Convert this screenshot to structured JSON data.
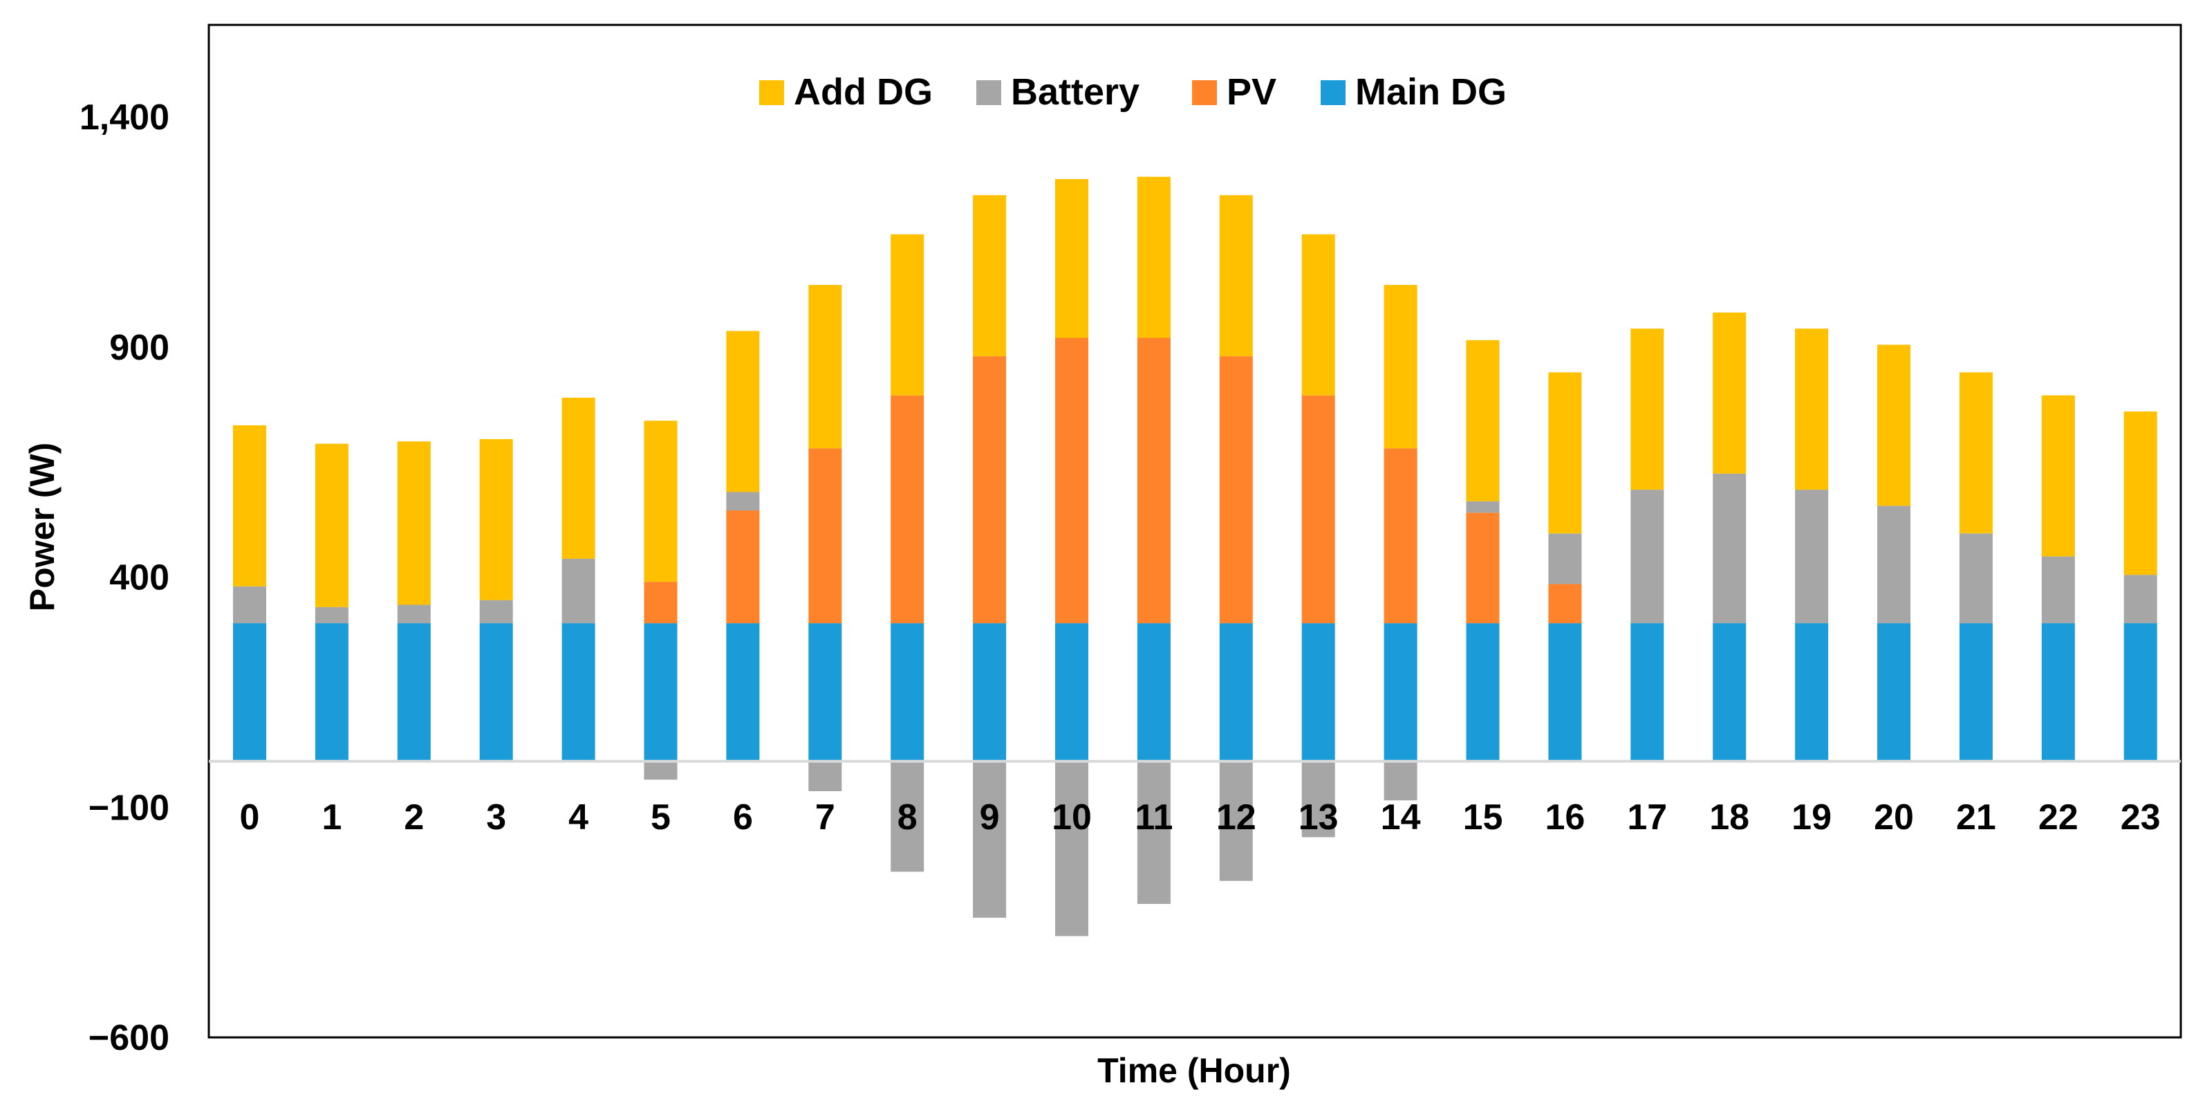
{
  "chart_data": {
    "type": "bar",
    "stacked": true,
    "title": "",
    "xlabel": "Time (Hour)",
    "ylabel": "Power (W)",
    "ylim": [
      -600,
      1600
    ],
    "yticks": [
      -600,
      -100,
      400,
      900,
      1400
    ],
    "ytick_labels": [
      "−600",
      "−100",
      "400",
      "900",
      "1,400"
    ],
    "categories": [
      "0",
      "1",
      "2",
      "3",
      "4",
      "5",
      "6",
      "7",
      "8",
      "9",
      "10",
      "11",
      "12",
      "13",
      "14",
      "15",
      "16",
      "17",
      "18",
      "19",
      "20",
      "21",
      "22",
      "23"
    ],
    "legend_position": "top-center",
    "legend_order": [
      "Add DG",
      "Battery",
      "PV",
      "Main DG"
    ],
    "series": [
      {
        "name": "Main DG",
        "color": "#1B9CD8",
        "values": [
          300,
          300,
          300,
          300,
          300,
          300,
          300,
          300,
          300,
          300,
          300,
          300,
          300,
          300,
          300,
          300,
          300,
          300,
          300,
          300,
          300,
          300,
          300,
          300
        ]
      },
      {
        "name": "PV",
        "color": "#FF832A",
        "values": [
          0,
          0,
          0,
          0,
          0,
          90,
          245,
          380,
          495,
          580,
          620,
          620,
          580,
          495,
          380,
          240,
          85,
          0,
          0,
          0,
          0,
          0,
          0,
          0
        ]
      },
      {
        "name": "Battery",
        "color": "#A6A6A6",
        "values": [
          80,
          35,
          40,
          50,
          140,
          -40,
          40,
          -65,
          -240,
          -340,
          -380,
          -310,
          -260,
          -165,
          -85,
          25,
          110,
          290,
          325,
          290,
          255,
          195,
          145,
          105
        ]
      },
      {
        "name": "Add DG",
        "color": "#FFC000",
        "values": [
          350,
          355,
          355,
          350,
          350,
          350,
          350,
          355,
          350,
          350,
          345,
          350,
          350,
          350,
          355,
          350,
          350,
          350,
          350,
          350,
          350,
          350,
          350,
          355
        ]
      }
    ]
  }
}
